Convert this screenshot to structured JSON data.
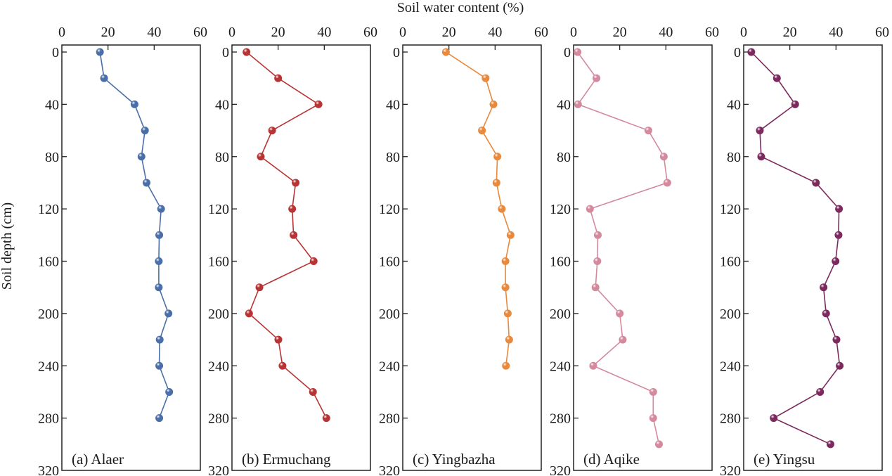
{
  "chart_data": {
    "type": "line",
    "title": "",
    "xlabel": "Soil water content (%)",
    "ylabel": "Soil depth (cm)",
    "x_axis_position": "top",
    "y_inverted": true,
    "xlim": [
      0,
      60
    ],
    "ylim": [
      0,
      320
    ],
    "x_ticks": [
      "0",
      "20",
      "40",
      "60"
    ],
    "y_ticks": [
      "0",
      "40",
      "80",
      "120",
      "160",
      "200",
      "240",
      "280",
      "320"
    ],
    "grid": false,
    "panels": [
      {
        "label": "(a) Alaer",
        "color": "#4a6fa8",
        "depth": [
          0,
          20,
          40,
          60,
          80,
          100,
          120,
          140,
          160,
          180,
          200,
          220,
          240,
          260,
          280
        ],
        "values": [
          16.5,
          18.3,
          31.5,
          36,
          34.5,
          36.7,
          43,
          42.2,
          42,
          42,
          46.2,
          42.4,
          42.2,
          46.5,
          42.2
        ]
      },
      {
        "label": "(b) Ermuchang",
        "color": "#b83434",
        "depth": [
          0,
          20,
          40,
          60,
          80,
          100,
          120,
          140,
          160,
          180,
          200,
          220,
          240,
          260,
          280
        ],
        "values": [
          6.3,
          20,
          37.5,
          17.4,
          12.5,
          27.6,
          26.1,
          26.7,
          35.4,
          11.9,
          7.4,
          20.1,
          21.9,
          35.1,
          40.9
        ]
      },
      {
        "label": "(c) Yingbazha",
        "color": "#e8893c",
        "depth": [
          0,
          20,
          40,
          60,
          80,
          100,
          120,
          140,
          160,
          180,
          200,
          220,
          240
        ],
        "values": [
          18.7,
          35.9,
          39.3,
          34.3,
          41,
          40.6,
          42.9,
          46.7,
          44.5,
          44.5,
          45.5,
          46.1,
          44.7
        ]
      },
      {
        "label": "(d) Aqike",
        "color": "#d4899d",
        "depth": [
          0,
          20,
          40,
          60,
          80,
          100,
          120,
          140,
          160,
          180,
          200,
          220,
          240,
          260,
          280,
          300
        ],
        "values": [
          1.7,
          9.9,
          1.9,
          32.4,
          39.1,
          40.6,
          7.1,
          10.5,
          10.3,
          9.5,
          20,
          21.3,
          8.5,
          34.5,
          34.5,
          37
        ]
      },
      {
        "label": "(e) Yingsu",
        "color": "#7c2a5e",
        "depth": [
          0,
          20,
          40,
          60,
          80,
          100,
          120,
          140,
          160,
          180,
          200,
          220,
          240,
          260,
          280,
          300
        ],
        "values": [
          3.3,
          14.4,
          22.3,
          7,
          7.6,
          31.3,
          41.3,
          41.1,
          39.8,
          34.6,
          35.7,
          40.2,
          41.6,
          33.1,
          13,
          37.6
        ]
      }
    ]
  }
}
